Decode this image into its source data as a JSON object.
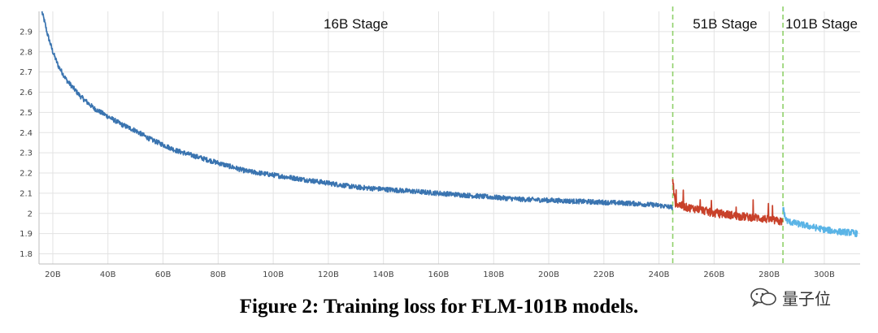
{
  "chart_data": {
    "type": "line",
    "title": "",
    "xlabel": "",
    "ylabel": "",
    "xlim": [
      15,
      313
    ],
    "ylim": [
      1.75,
      3.0
    ],
    "x_ticks": [
      20,
      40,
      60,
      80,
      100,
      120,
      140,
      160,
      180,
      200,
      220,
      240,
      260,
      280,
      300
    ],
    "x_tick_labels": [
      "20B",
      "40B",
      "60B",
      "80B",
      "100B",
      "120B",
      "140B",
      "160B",
      "180B",
      "200B",
      "220B",
      "240B",
      "260B",
      "280B",
      "300B"
    ],
    "y_ticks": [
      1.8,
      1.9,
      2.0,
      2.1,
      2.2,
      2.3,
      2.4,
      2.5,
      2.6,
      2.7,
      2.8,
      2.9
    ],
    "y_tick_labels": [
      "1.8",
      "1.9",
      "2",
      "2.1",
      "2.2",
      "2.3",
      "2.4",
      "2.5",
      "2.6",
      "2.7",
      "2.8",
      "2.9"
    ],
    "grid": true,
    "stage_boundaries": [
      245,
      285
    ],
    "stage_labels": [
      {
        "text": "16B Stage",
        "x": 130
      },
      {
        "text": "51B Stage",
        "x": 264
      },
      {
        "text": "101B Stage",
        "x": 299
      }
    ],
    "series": [
      {
        "color": "#3a74b0",
        "x": [
          16,
          17,
          18,
          20,
          22,
          25,
          30,
          35,
          40,
          45,
          50,
          55,
          60,
          65,
          70,
          80,
          90,
          100,
          110,
          120,
          130,
          140,
          150,
          160,
          170,
          180,
          190,
          200,
          210,
          220,
          230,
          240,
          245
        ],
        "y": [
          3.0,
          2.95,
          2.89,
          2.8,
          2.73,
          2.66,
          2.58,
          2.52,
          2.48,
          2.44,
          2.41,
          2.37,
          2.34,
          2.31,
          2.29,
          2.25,
          2.21,
          2.19,
          2.17,
          2.15,
          2.13,
          2.12,
          2.11,
          2.1,
          2.09,
          2.08,
          2.07,
          2.065,
          2.06,
          2.055,
          2.05,
          2.04,
          2.03
        ]
      },
      {
        "color": "#c8412a",
        "x": [
          245,
          245.6,
          246,
          248,
          250,
          255,
          260,
          265,
          270,
          275,
          280,
          284,
          285
        ],
        "y": [
          2.17,
          2.08,
          2.05,
          2.04,
          2.03,
          2.02,
          2.0,
          1.995,
          1.985,
          1.98,
          1.97,
          1.96,
          1.96
        ]
      },
      {
        "color": "#5ab4e6",
        "x": [
          285,
          286,
          287,
          290,
          295,
          300,
          305,
          310,
          312
        ],
        "y": [
          2.03,
          1.97,
          1.96,
          1.95,
          1.935,
          1.92,
          1.91,
          1.905,
          1.9
        ]
      }
    ]
  },
  "caption": "Figure 2: Training loss for FLM-101B models.",
  "watermark": {
    "text": "量子位",
    "icon": "wechat-icon"
  }
}
